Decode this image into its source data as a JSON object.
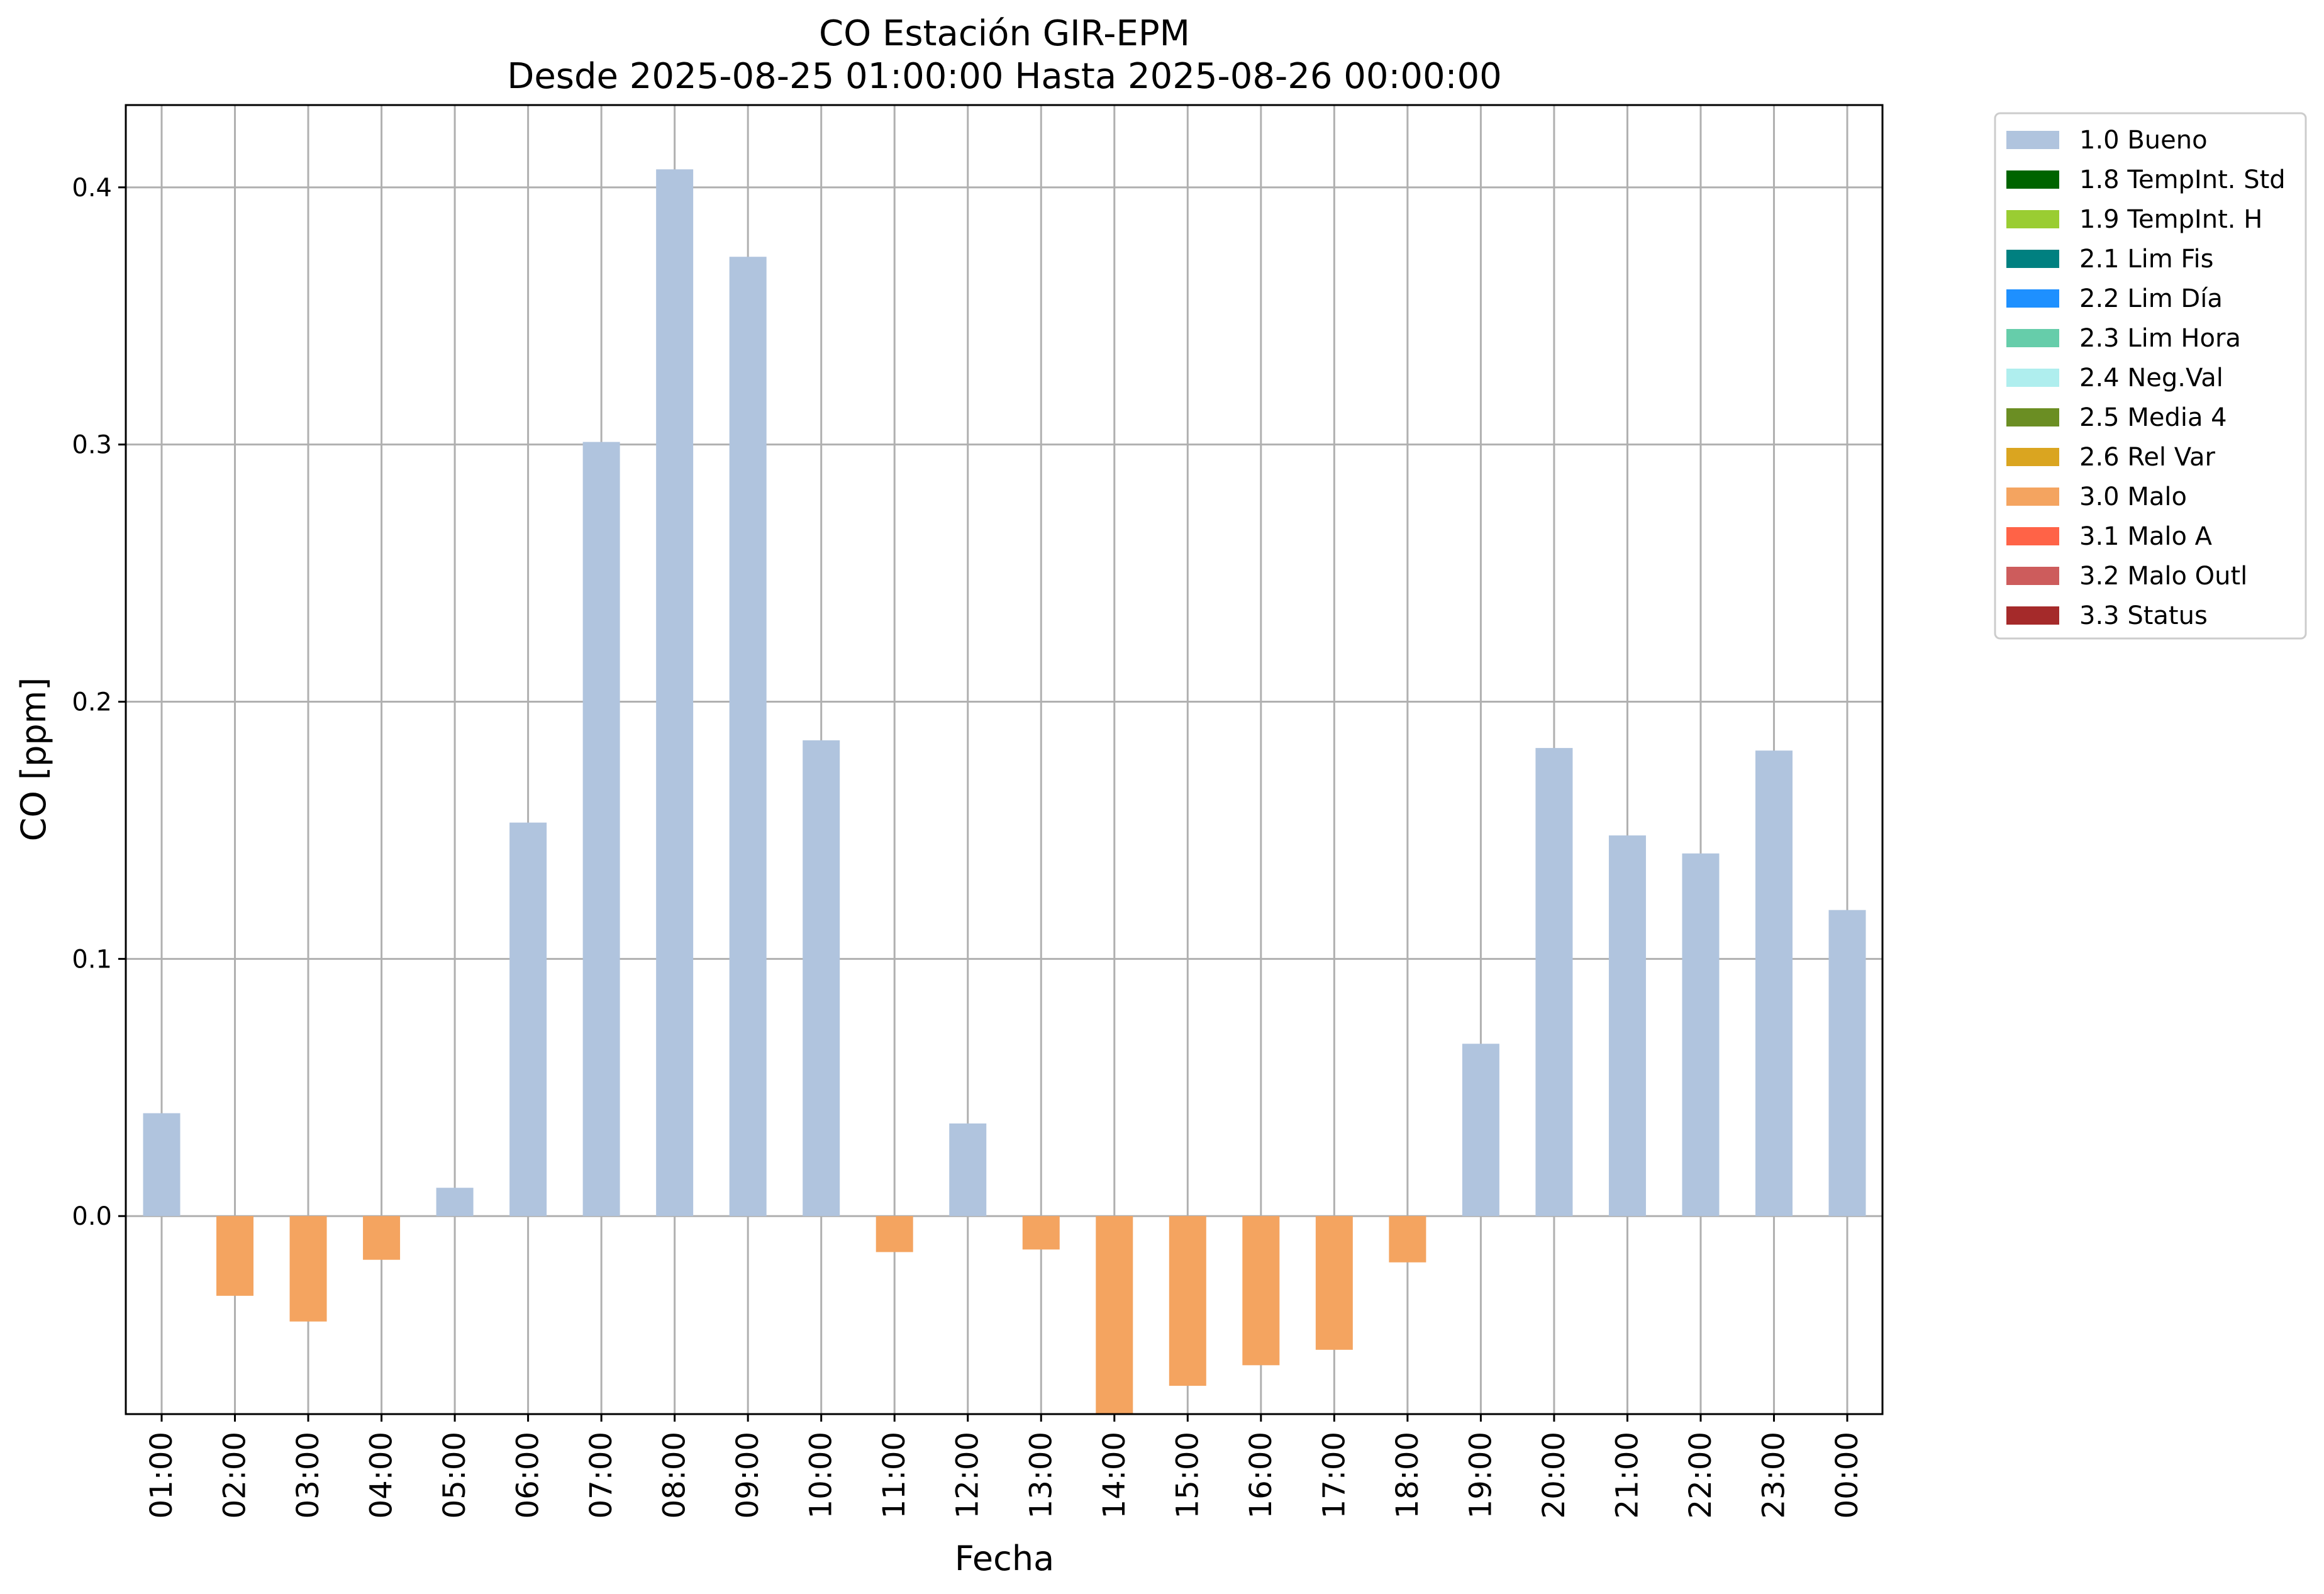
{
  "chart_data": {
    "type": "bar",
    "title": "CO Estación GIR-EPM",
    "subtitle": "Desde 2025-08-25 01:00:00 Hasta 2025-08-26 00:00:00",
    "xlabel": "Fecha",
    "ylabel": "CO [ppm]",
    "ylim": [
      -0.077,
      0.432
    ],
    "yticks": [
      "0.0",
      "0.1",
      "0.2",
      "0.3",
      "0.4"
    ],
    "ytick_values": [
      0.0,
      0.1,
      0.2,
      0.3,
      0.4
    ],
    "grid": true,
    "legend_position": "outside-right-top",
    "categories": [
      "01:00",
      "02:00",
      "03:00",
      "04:00",
      "05:00",
      "06:00",
      "07:00",
      "08:00",
      "09:00",
      "10:00",
      "11:00",
      "12:00",
      "13:00",
      "14:00",
      "15:00",
      "16:00",
      "17:00",
      "18:00",
      "19:00",
      "20:00",
      "21:00",
      "22:00",
      "23:00",
      "00:00"
    ],
    "values": [
      0.04,
      -0.031,
      -0.041,
      -0.017,
      0.011,
      0.153,
      0.301,
      0.407,
      0.373,
      0.185,
      -0.014,
      0.036,
      -0.013,
      -0.077,
      -0.066,
      -0.058,
      -0.052,
      -0.018,
      0.067,
      0.182,
      0.148,
      0.141,
      0.181,
      0.119
    ],
    "flags": [
      "1.0",
      "3.0",
      "3.0",
      "3.0",
      "1.0",
      "1.0",
      "1.0",
      "1.0",
      "1.0",
      "1.0",
      "3.0",
      "1.0",
      "3.0",
      "3.0",
      "3.0",
      "3.0",
      "3.0",
      "3.0",
      "1.0",
      "1.0",
      "1.0",
      "1.0",
      "1.0",
      "1.0"
    ],
    "legend": [
      {
        "code": "1.0",
        "label": "1.0 Bueno",
        "color": "#b0c4de"
      },
      {
        "code": "1.8",
        "label": "1.8 TempInt. Std",
        "color": "#006400"
      },
      {
        "code": "1.9",
        "label": "1.9 TempInt. H",
        "color": "#9acd32"
      },
      {
        "code": "2.1",
        "label": "2.1 Lim Fis",
        "color": "#008080"
      },
      {
        "code": "2.2",
        "label": "2.2 Lim Día",
        "color": "#1e90ff"
      },
      {
        "code": "2.3",
        "label": "2.3 Lim Hora",
        "color": "#66cdaa"
      },
      {
        "code": "2.4",
        "label": "2.4 Neg.Val",
        "color": "#afeeee"
      },
      {
        "code": "2.5",
        "label": "2.5 Media 4",
        "color": "#6b8e23"
      },
      {
        "code": "2.6",
        "label": "2.6 Rel Var",
        "color": "#daa520"
      },
      {
        "code": "3.0",
        "label": "3.0 Malo",
        "color": "#f4a460"
      },
      {
        "code": "3.1",
        "label": "3.1 Malo A",
        "color": "#ff6347"
      },
      {
        "code": "3.2",
        "label": "3.2 Malo Outl",
        "color": "#cd5c5c"
      },
      {
        "code": "3.3",
        "label": "3.3 Status",
        "color": "#a52a2a"
      }
    ]
  }
}
